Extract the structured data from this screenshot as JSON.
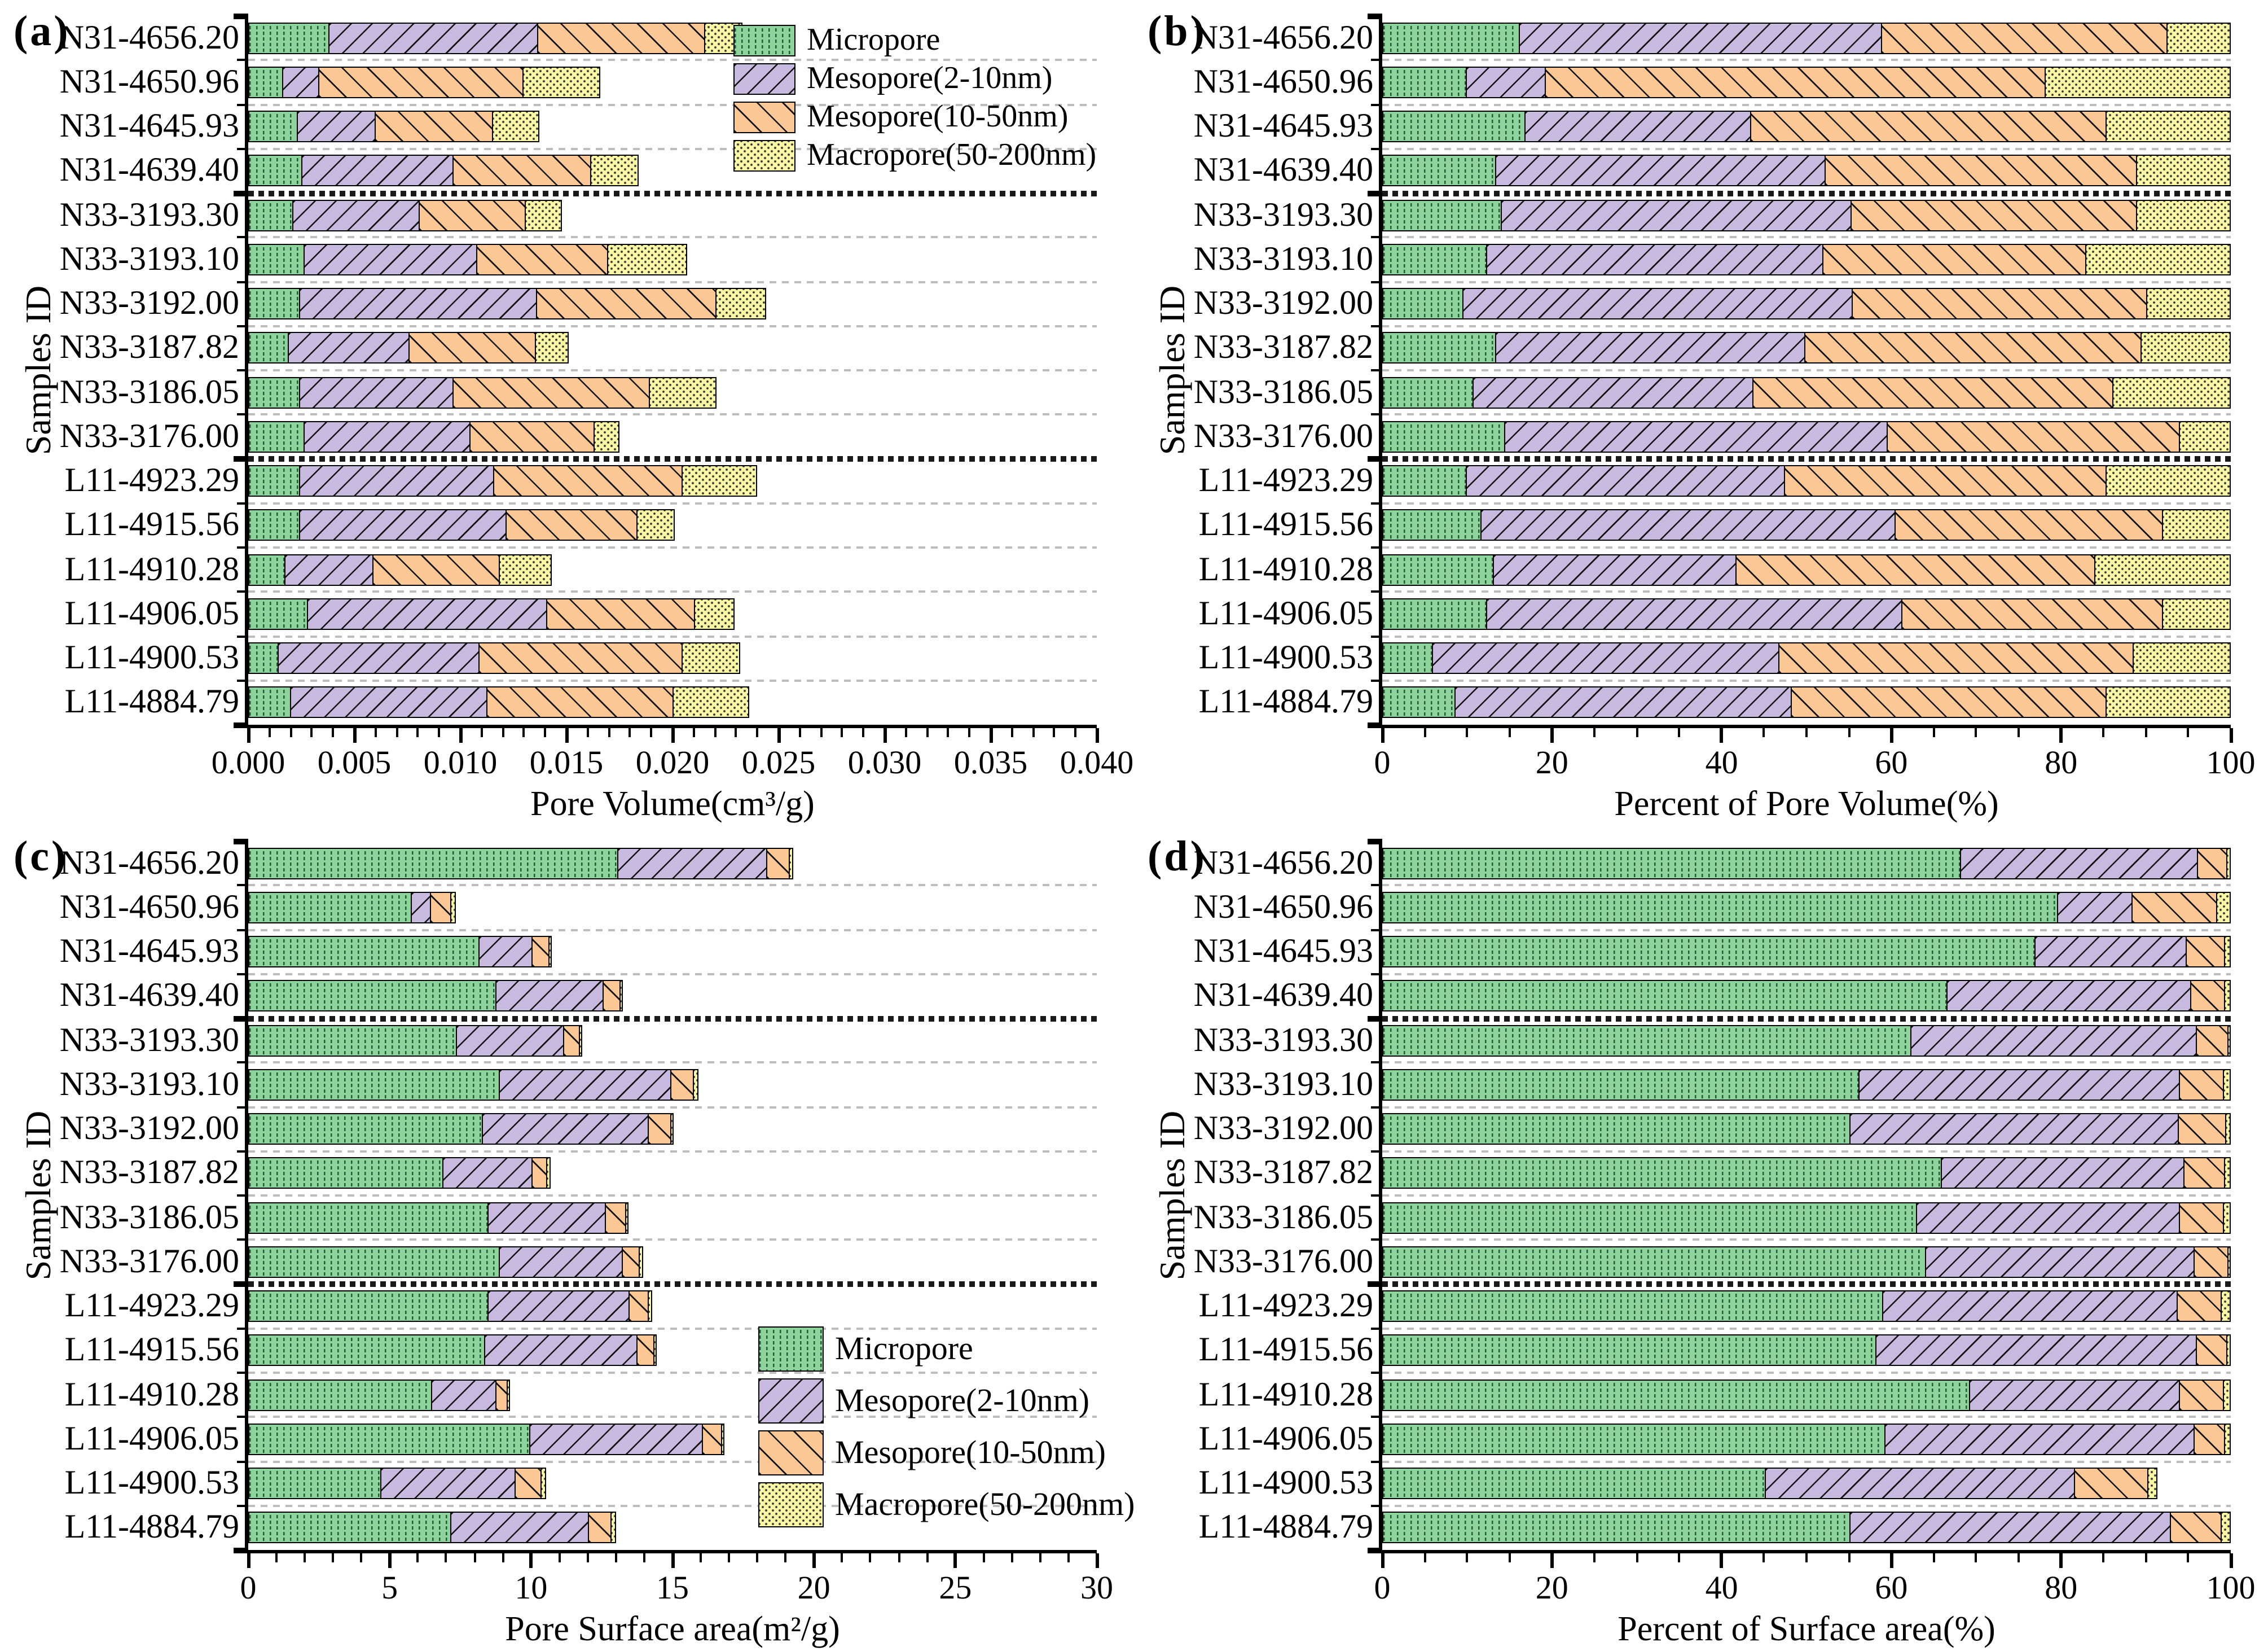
{
  "figure": {
    "y_axis_title": "Samples ID",
    "panel_letters": [
      "(a)",
      "(b)",
      "(c)",
      "(d)"
    ],
    "legend_labels": [
      "Micropore",
      "Mesopore(2-10nm)",
      "Mesopore(10-50nm)",
      "Macropore(50-200nm)"
    ],
    "colors": {
      "micropore_fill": "#8ed39c",
      "micropore_pattern": "#1e5c33",
      "mesopore_2_10_fill": "#c7bade",
      "mesopore_10_50_fill": "#fbc795",
      "macropore_fill": "#fbf8a5",
      "hatch_line": "#111111",
      "dot_pattern": "#3a3a3a",
      "axis": "#000000",
      "grid_light": "#bdbdbd",
      "grid_heavy": "#1a1a1a"
    }
  },
  "chart_data": {
    "type": "bar",
    "orientation": "horizontal-stacked",
    "grid": "dashed-horizontal-between-rows",
    "category_axis_label": "Samples ID",
    "categories": [
      "N31-4656.20",
      "N31-4650.96",
      "N31-4645.93",
      "N31-4639.40",
      "N33-3193.30",
      "N33-3193.10",
      "N33-3192.00",
      "N33-3187.82",
      "N33-3186.05",
      "N33-3176.00",
      "L11-4923.29",
      "L11-4915.56",
      "L11-4910.28",
      "L11-4906.05",
      "L11-4900.53",
      "L11-4884.79"
    ],
    "group_separators_after_index": [
      3,
      9
    ],
    "series_names": [
      "Micropore",
      "Mesopore(2-10nm)",
      "Mesopore(10-50nm)",
      "Macropore(50-200nm)"
    ],
    "charts": [
      {
        "key": "a",
        "letter": "(a)",
        "xlabel": "Pore Volume(cm³/g)",
        "xlim": [
          0,
          0.04
        ],
        "x_ticks": [
          "0.000",
          "0.005",
          "0.010",
          "0.015",
          "0.020",
          "0.025",
          "0.030",
          "0.035",
          "0.040"
        ],
        "minor_tick_step": 0.001,
        "legend_position": "top-right",
        "series": [
          {
            "name": "Micropore",
            "values": [
              0.0038,
              0.0016,
              0.0023,
              0.0025,
              0.0021,
              0.0026,
              0.0024,
              0.0019,
              0.0024,
              0.0026,
              0.0024,
              0.0024,
              0.0017,
              0.0028,
              0.0014,
              0.002
            ]
          },
          {
            "name": "Mesopore(2-10nm)",
            "values": [
              0.0099,
              0.0017,
              0.0037,
              0.0072,
              0.006,
              0.0082,
              0.0112,
              0.0057,
              0.0073,
              0.0079,
              0.0092,
              0.0098,
              0.0042,
              0.0113,
              0.0095,
              0.0093
            ]
          },
          {
            "name": "Mesopore(10-50nm)",
            "values": [
              0.0079,
              0.0097,
              0.0056,
              0.0065,
              0.005,
              0.0062,
              0.0085,
              0.006,
              0.0093,
              0.0059,
              0.0089,
              0.0062,
              0.006,
              0.007,
              0.0096,
              0.0088
            ]
          },
          {
            "name": "Macropore(50-200nm)",
            "values": [
              0.0017,
              0.0036,
              0.0021,
              0.0022,
              0.0017,
              0.0037,
              0.0023,
              0.0015,
              0.0031,
              0.0011,
              0.0035,
              0.0017,
              0.0024,
              0.0018,
              0.0027,
              0.0035
            ]
          }
        ]
      },
      {
        "key": "b",
        "letter": "(b)",
        "xlabel": "Percent of Pore Volume(%)",
        "xlim": [
          0,
          100
        ],
        "x_ticks": [
          "0",
          "20",
          "40",
          "60",
          "80",
          "100"
        ],
        "minor_tick_step": 5,
        "legend_position": "none",
        "series": [
          {
            "name": "Micropore",
            "values": [
              16.1,
              9.9,
              16.8,
              13.3,
              14.0,
              12.3,
              9.5,
              13.3,
              10.6,
              14.4,
              9.9,
              11.6,
              13.0,
              12.3,
              5.9,
              8.5
            ]
          },
          {
            "name": "Mesopore(2-10nm)",
            "values": [
              42.8,
              9.3,
              26.6,
              39.0,
              41.4,
              39.7,
              45.9,
              36.6,
              33.1,
              45.2,
              37.6,
              49.0,
              28.7,
              49.0,
              40.9,
              39.7
            ]
          },
          {
            "name": "Mesopore(10-50nm)",
            "values": [
              33.8,
              59.0,
              42.1,
              36.7,
              33.6,
              31.1,
              34.9,
              39.7,
              42.5,
              34.5,
              38.0,
              31.5,
              42.4,
              30.8,
              41.8,
              37.3
            ]
          },
          {
            "name": "Macropore(50-200nm)",
            "values": [
              7.3,
              21.8,
              14.5,
              11.0,
              11.0,
              16.9,
              9.7,
              10.4,
              13.8,
              5.9,
              14.5,
              7.9,
              15.9,
              7.9,
              11.4,
              14.5
            ]
          }
        ]
      },
      {
        "key": "c",
        "letter": "(c)",
        "xlabel": "Pore Surface area(m²/g)",
        "xlim": [
          0,
          30
        ],
        "x_ticks": [
          "0",
          "5",
          "10",
          "15",
          "20",
          "25",
          "30"
        ],
        "minor_tick_step": 1,
        "legend_position": "bottom-right",
        "series": [
          {
            "name": "Micropore",
            "values": [
              13.1,
              5.8,
              8.2,
              8.8,
              7.4,
              8.9,
              8.3,
              6.9,
              8.5,
              8.9,
              8.5,
              8.4,
              6.5,
              10.0,
              4.7,
              7.2
            ]
          },
          {
            "name": "Mesopore(2-10nm)",
            "values": [
              5.3,
              0.7,
              1.9,
              3.8,
              3.8,
              6.1,
              5.9,
              3.2,
              4.2,
              4.4,
              5.0,
              5.4,
              2.3,
              6.1,
              4.8,
              4.9
            ]
          },
          {
            "name": "Mesopore(10-50nm)",
            "values": [
              0.8,
              0.7,
              0.6,
              0.6,
              0.55,
              0.8,
              0.8,
              0.5,
              0.7,
              0.6,
              0.7,
              0.6,
              0.4,
              0.7,
              0.9,
              0.8
            ]
          },
          {
            "name": "Macropore(50-200nm)",
            "values": [
              0.05,
              0.15,
              0.05,
              0.05,
              0.05,
              0.1,
              0.05,
              0.1,
              0.05,
              0.05,
              0.1,
              0.05,
              0.05,
              0.05,
              0.15,
              0.1
            ]
          }
        ]
      },
      {
        "key": "d",
        "letter": "(d)",
        "xlabel": "Percent of Surface area(%)",
        "xlim": [
          0,
          100
        ],
        "x_ticks": [
          "0",
          "20",
          "40",
          "60",
          "80",
          "100"
        ],
        "minor_tick_step": 5,
        "legend_position": "none",
        "series": [
          {
            "name": "Micropore",
            "values": [
              68.3,
              79.7,
              77.0,
              66.6,
              62.4,
              56.2,
              55.2,
              66.0,
              63.1,
              64.1,
              59.0,
              58.3,
              69.3,
              59.3,
              45.2,
              55.2
            ]
          },
          {
            "name": "Mesopore(2-10nm)",
            "values": [
              27.9,
              8.8,
              17.9,
              28.9,
              33.7,
              37.9,
              38.8,
              28.7,
              31.0,
              31.7,
              34.8,
              37.8,
              24.8,
              36.6,
              36.6,
              37.9
            ]
          },
          {
            "name": "Mesopore(10-50nm)",
            "values": [
              3.5,
              10.0,
              4.5,
              4.0,
              3.7,
              5.2,
              5.6,
              4.8,
              5.2,
              4.0,
              5.2,
              3.6,
              5.2,
              3.6,
              8.6,
              5.9
            ]
          },
          {
            "name": "Macropore(50-200nm)",
            "values": [
              0.3,
              1.5,
              0.6,
              0.5,
              0.2,
              0.7,
              0.4,
              0.5,
              0.7,
              0.2,
              1.0,
              0.3,
              0.7,
              0.5,
              1.0,
              1.0
            ]
          }
        ]
      }
    ]
  }
}
